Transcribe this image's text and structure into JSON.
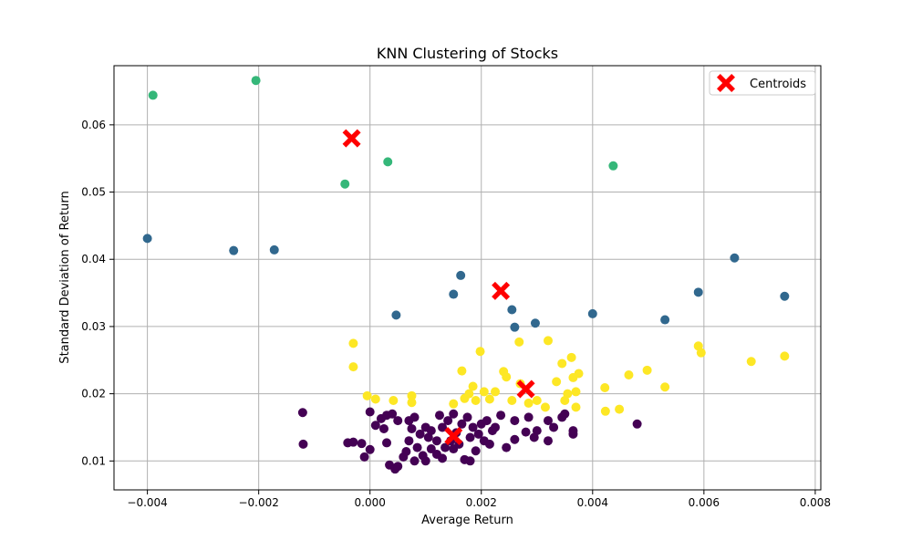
{
  "chart_data": {
    "type": "scatter",
    "title": "KNN Clustering of Stocks",
    "xlabel": "Average Return",
    "ylabel": "Standard Deviation of Return",
    "xlim": [
      -0.0046,
      0.0081
    ],
    "ylim": [
      0.0057,
      0.0688
    ],
    "xticks": [
      -0.004,
      -0.002,
      0.0,
      0.002,
      0.004,
      0.006,
      0.008
    ],
    "xtick_labels": [
      "−0.004",
      "−0.002",
      "0.000",
      "0.002",
      "0.004",
      "0.006",
      "0.008"
    ],
    "yticks": [
      0.01,
      0.02,
      0.03,
      0.04,
      0.05,
      0.06
    ],
    "ytick_labels": [
      "0.01",
      "0.02",
      "0.03",
      "0.04",
      "0.05",
      "0.06"
    ],
    "grid": true,
    "legend": {
      "position": "top-right",
      "entries": [
        "Centroids"
      ]
    },
    "colors": {
      "cluster_0": "#440154",
      "cluster_1": "#31688e",
      "cluster_2": "#35b779",
      "cluster_3": "#fde725",
      "centroid": "#ff0000",
      "grid": "#b0b0b0"
    },
    "clusters": [
      {
        "color_key": "cluster_0",
        "points": [
          [
            -0.00121,
            0.0172
          ],
          [
            -0.0012,
            0.0125
          ],
          [
            -0.0004,
            0.0127
          ],
          [
            -0.0003,
            0.0128
          ],
          [
            -0.00015,
            0.0126
          ],
          [
            -0.0001,
            0.0106
          ],
          [
            0.0,
            0.0117
          ],
          [
            0.0,
            0.0173
          ],
          [
            0.0001,
            0.0153
          ],
          [
            0.0002,
            0.0163
          ],
          [
            0.00025,
            0.0148
          ],
          [
            0.0003,
            0.0127
          ],
          [
            0.0003,
            0.0168
          ],
          [
            0.00035,
            0.0094
          ],
          [
            0.00045,
            0.0088
          ],
          [
            0.0004,
            0.017
          ],
          [
            0.0005,
            0.016
          ],
          [
            0.0005,
            0.0092
          ],
          [
            0.0006,
            0.0106
          ],
          [
            0.00065,
            0.0114
          ],
          [
            0.0007,
            0.013
          ],
          [
            0.0007,
            0.016
          ],
          [
            0.00075,
            0.0148
          ],
          [
            0.0008,
            0.01
          ],
          [
            0.0008,
            0.0165
          ],
          [
            0.00085,
            0.012
          ],
          [
            0.0009,
            0.014
          ],
          [
            0.00095,
            0.0108
          ],
          [
            0.001,
            0.015
          ],
          [
            0.001,
            0.01
          ],
          [
            0.00105,
            0.0135
          ],
          [
            0.0011,
            0.0118
          ],
          [
            0.0011,
            0.0145
          ],
          [
            0.0012,
            0.013
          ],
          [
            0.0012,
            0.011
          ],
          [
            0.00125,
            0.0168
          ],
          [
            0.0013,
            0.015
          ],
          [
            0.0013,
            0.0104
          ],
          [
            0.00135,
            0.012
          ],
          [
            0.0014,
            0.016
          ],
          [
            0.00145,
            0.013
          ],
          [
            0.0015,
            0.0118
          ],
          [
            0.0015,
            0.017
          ],
          [
            0.00155,
            0.0142
          ],
          [
            0.0016,
            0.0125
          ],
          [
            0.00165,
            0.0155
          ],
          [
            0.0017,
            0.0102
          ],
          [
            0.00175,
            0.0165
          ],
          [
            0.0018,
            0.0135
          ],
          [
            0.0018,
            0.01
          ],
          [
            0.00185,
            0.015
          ],
          [
            0.0019,
            0.0115
          ],
          [
            0.00195,
            0.014
          ],
          [
            0.002,
            0.0155
          ],
          [
            0.00205,
            0.013
          ],
          [
            0.0021,
            0.016
          ],
          [
            0.00215,
            0.0125
          ],
          [
            0.0022,
            0.0145
          ],
          [
            0.00225,
            0.015
          ],
          [
            0.00235,
            0.0168
          ],
          [
            0.00245,
            0.012
          ],
          [
            0.0026,
            0.016
          ],
          [
            0.0026,
            0.0132
          ],
          [
            0.0028,
            0.0143
          ],
          [
            0.00285,
            0.0165
          ],
          [
            0.00295,
            0.0135
          ],
          [
            0.003,
            0.0145
          ],
          [
            0.0032,
            0.013
          ],
          [
            0.0032,
            0.016
          ],
          [
            0.0033,
            0.015
          ],
          [
            0.00345,
            0.0165
          ],
          [
            0.0035,
            0.017
          ],
          [
            0.00365,
            0.014
          ],
          [
            0.00365,
            0.0145
          ],
          [
            0.0048,
            0.0155
          ]
        ]
      },
      {
        "color_key": "cluster_1",
        "points": [
          [
            -0.004,
            0.0431
          ],
          [
            -0.00245,
            0.0413
          ],
          [
            -0.00172,
            0.0414
          ],
          [
            0.00047,
            0.0317
          ],
          [
            0.0015,
            0.0348
          ],
          [
            0.00163,
            0.0376
          ],
          [
            0.00255,
            0.0325
          ],
          [
            0.0026,
            0.0299
          ],
          [
            0.00297,
            0.0305
          ],
          [
            0.004,
            0.0319
          ],
          [
            0.0053,
            0.031
          ],
          [
            0.0059,
            0.0351
          ],
          [
            0.00655,
            0.0402
          ],
          [
            0.00745,
            0.0345
          ]
        ]
      },
      {
        "color_key": "cluster_2",
        "points": [
          [
            -0.0039,
            0.0644
          ],
          [
            -0.00205,
            0.0666
          ],
          [
            -0.00045,
            0.0512
          ],
          [
            0.00032,
            0.0545
          ],
          [
            0.00437,
            0.0539
          ]
        ]
      },
      {
        "color_key": "cluster_3",
        "points": [
          [
            -0.0003,
            0.0275
          ],
          [
            -0.0003,
            0.024
          ],
          [
            -5e-05,
            0.0197
          ],
          [
            0.0001,
            0.0192
          ],
          [
            0.00042,
            0.019
          ],
          [
            0.00075,
            0.0197
          ],
          [
            0.00075,
            0.0187
          ],
          [
            0.0015,
            0.0185
          ],
          [
            0.00165,
            0.0234
          ],
          [
            0.0017,
            0.0193
          ],
          [
            0.00178,
            0.02
          ],
          [
            0.00185,
            0.0211
          ],
          [
            0.0019,
            0.019
          ],
          [
            0.00198,
            0.0263
          ],
          [
            0.00205,
            0.0203
          ],
          [
            0.00215,
            0.0192
          ],
          [
            0.00225,
            0.0203
          ],
          [
            0.0024,
            0.0233
          ],
          [
            0.00245,
            0.0225
          ],
          [
            0.00255,
            0.019
          ],
          [
            0.00268,
            0.0277
          ],
          [
            0.0027,
            0.0215
          ],
          [
            0.00285,
            0.0186
          ],
          [
            0.003,
            0.019
          ],
          [
            0.00315,
            0.018
          ],
          [
            0.0032,
            0.0279
          ],
          [
            0.00335,
            0.0218
          ],
          [
            0.00345,
            0.0245
          ],
          [
            0.0035,
            0.019
          ],
          [
            0.00355,
            0.02
          ],
          [
            0.00362,
            0.0254
          ],
          [
            0.00365,
            0.0224
          ],
          [
            0.0037,
            0.0203
          ],
          [
            0.0037,
            0.018
          ],
          [
            0.00375,
            0.023
          ],
          [
            0.00422,
            0.0209
          ],
          [
            0.00423,
            0.0174
          ],
          [
            0.00448,
            0.0177
          ],
          [
            0.00465,
            0.0228
          ],
          [
            0.00498,
            0.0235
          ],
          [
            0.0053,
            0.021
          ],
          [
            0.0059,
            0.0271
          ],
          [
            0.00595,
            0.0261
          ],
          [
            0.00685,
            0.0248
          ],
          [
            0.00745,
            0.0256
          ]
        ]
      }
    ],
    "centroids": [
      [
        -0.00033,
        0.058
      ],
      [
        0.00235,
        0.0353
      ],
      [
        0.0028,
        0.0207
      ],
      [
        0.0015,
        0.0137
      ]
    ]
  }
}
